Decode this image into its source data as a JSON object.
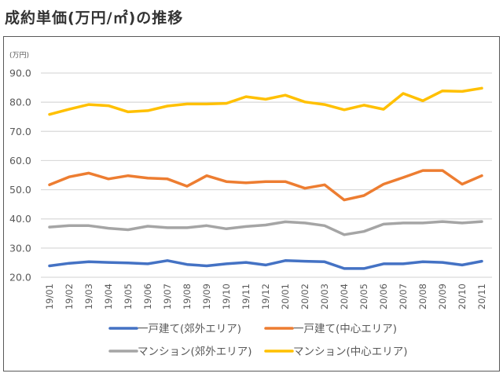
{
  "title": "成約単価(万円/㎡)の推移",
  "chart_data": {
    "type": "line",
    "title": "成約単価(万円/㎡)の推移",
    "ylabel": "(万円)",
    "xlabel": "",
    "ylim": [
      20,
      90
    ],
    "yticks": [
      "90.0",
      "80.0",
      "70.0",
      "60.0",
      "50.0",
      "40.0",
      "30.0",
      "20.0"
    ],
    "ytick_values": [
      90,
      80,
      70,
      60,
      50,
      40,
      30,
      20
    ],
    "grid": true,
    "legend_position": "bottom",
    "categories": [
      "19/01",
      "19/02",
      "19/03",
      "19/04",
      "19/05",
      "19/06",
      "19/07",
      "19/08",
      "19/09",
      "19/10",
      "19/11",
      "19/12",
      "20/01",
      "20/02",
      "20/03",
      "20/04",
      "20/05",
      "20/06",
      "20/07",
      "20/08",
      "20/09",
      "20/10",
      "20/11"
    ],
    "series": [
      {
        "name": "一戸建て(郊外エリア)",
        "color": "#4472C4",
        "values": [
          23.9,
          24.8,
          25.3,
          25.1,
          24.9,
          24.6,
          25.7,
          24.4,
          23.9,
          24.6,
          25.1,
          24.2,
          25.7,
          25.5,
          25.3,
          23.0,
          23.0,
          24.6,
          24.6,
          25.3,
          25.1,
          24.2,
          25.5
        ]
      },
      {
        "name": "一戸建て(中心エリア)",
        "color": "#ED7D31",
        "values": [
          51.7,
          54.4,
          55.7,
          53.7,
          54.8,
          54.0,
          53.7,
          51.2,
          54.8,
          52.8,
          52.4,
          52.8,
          52.8,
          50.5,
          51.7,
          46.5,
          48.0,
          51.9,
          54.2,
          56.6,
          56.6,
          51.9,
          54.8
        ]
      },
      {
        "name": "マンション(郊外エリア)",
        "color": "#A5A5A5",
        "values": [
          37.2,
          37.7,
          37.7,
          36.8,
          36.3,
          37.5,
          37.0,
          37.0,
          37.7,
          36.6,
          37.4,
          37.9,
          39.0,
          38.6,
          37.7,
          34.6,
          35.7,
          38.2,
          38.6,
          38.6,
          39.1,
          38.6,
          39.1
        ]
      },
      {
        "name": "マンション(中心エリア)",
        "color": "#FFC000",
        "values": [
          75.8,
          77.6,
          79.2,
          78.8,
          76.7,
          77.1,
          78.7,
          79.4,
          79.4,
          79.6,
          81.9,
          81.0,
          82.4,
          80.1,
          79.2,
          77.4,
          79.0,
          77.6,
          83.0,
          80.5,
          83.9,
          83.7,
          84.8
        ]
      }
    ]
  }
}
